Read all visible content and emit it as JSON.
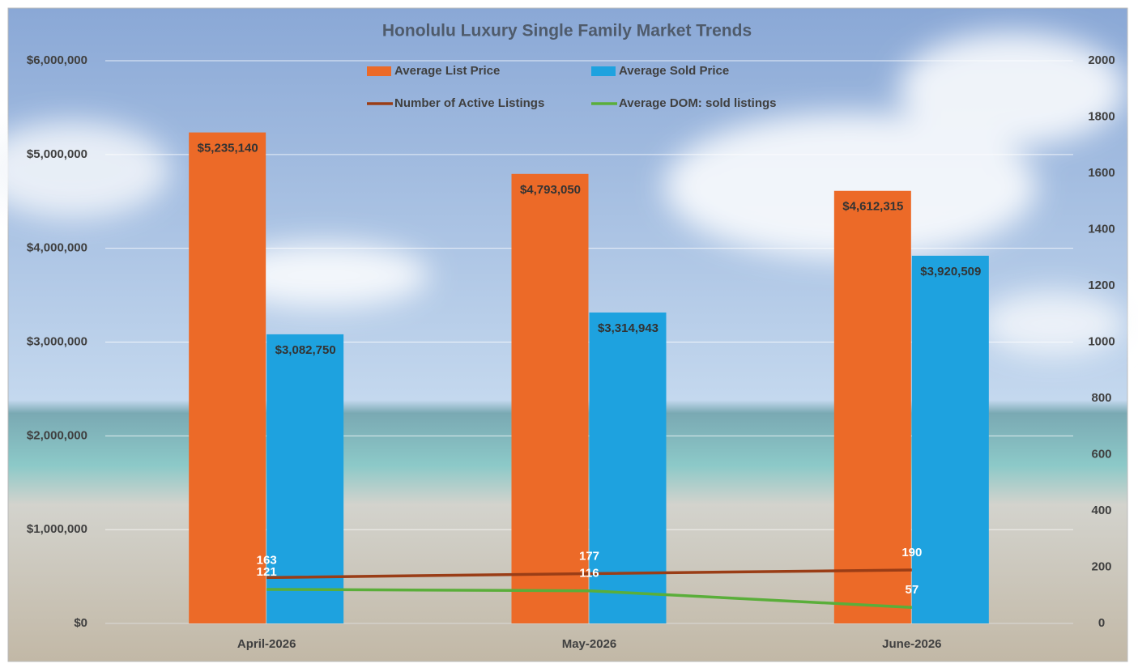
{
  "chart_data": {
    "type": "combo",
    "title": "Honolulu Luxury Single Family Market Trends",
    "categories": [
      "April-2026",
      "May-2026",
      "June-2026"
    ],
    "series": [
      {
        "name": "Average List Price",
        "type": "bar",
        "color": "#ec6a28",
        "values": [
          5235140,
          4793050,
          4612315
        ],
        "value_labels": [
          "$5,235,140",
          "$4,793,050",
          "$4,612,315"
        ]
      },
      {
        "name": "Average Sold Price",
        "type": "bar",
        "color": "#1ea2df",
        "values": [
          3082750,
          3314943,
          3920509
        ],
        "value_labels": [
          "$3,082,750",
          "$3,314,943",
          "$3,920,509"
        ]
      },
      {
        "name": "Number of Active Listings",
        "type": "line",
        "axis": "y2",
        "color": "#9a3d16",
        "values": [
          163,
          177,
          190
        ]
      },
      {
        "name": "Average DOM: sold listings",
        "type": "line",
        "axis": "y2",
        "color": "#5aae3a",
        "values": [
          121,
          116,
          57
        ]
      }
    ],
    "ylim": [
      0,
      6000000
    ],
    "yticks": [
      {
        "value": 0,
        "label": "$0"
      },
      {
        "value": 1000000,
        "label": "$1,000,000"
      },
      {
        "value": 2000000,
        "label": "$2,000,000"
      },
      {
        "value": 3000000,
        "label": "$3,000,000"
      },
      {
        "value": 4000000,
        "label": "$4,000,000"
      },
      {
        "value": 5000000,
        "label": "$5,000,000"
      },
      {
        "value": 6000000,
        "label": "$6,000,000"
      }
    ],
    "y2lim": [
      0,
      2000
    ],
    "y2ticks": [
      0,
      200,
      400,
      600,
      800,
      1000,
      1200,
      1400,
      1600,
      1800,
      2000
    ],
    "grid": true
  }
}
